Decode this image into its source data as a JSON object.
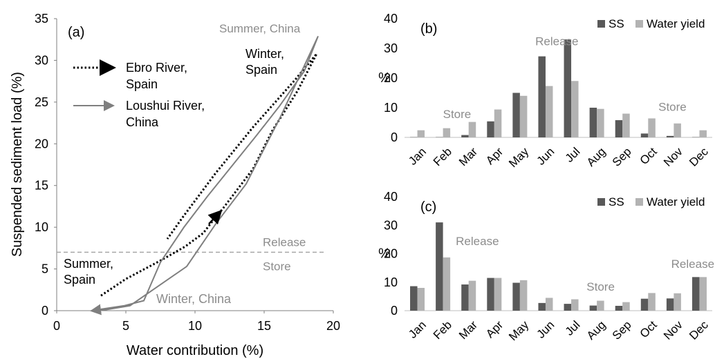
{
  "colors": {
    "ss": "#595959",
    "water": "#b3b3b3",
    "axis": "#7f7f7f",
    "text": "#000000",
    "annot_gray": "#8c8c8c",
    "ebro_line": "#000000",
    "loushui_line": "#7f7f7f",
    "threshold": "#a6a6a6"
  },
  "chart_data": [
    {
      "id": "a",
      "type": "line",
      "panel_label": "(a)",
      "xlabel": "Water contribution (%)",
      "ylabel": "Suspended sediment load (%)",
      "xlim": [
        0,
        20
      ],
      "ylim": [
        0,
        35
      ],
      "xticks": [
        "0",
        "5",
        "10",
        "15",
        "20"
      ],
      "yticks": [
        "0",
        "5",
        "10",
        "15",
        "20",
        "25",
        "30",
        "35"
      ],
      "threshold_y": 7,
      "threshold_labels": {
        "above": "Release",
        "below": "Store"
      },
      "legend": [
        {
          "key": "ebro",
          "line1": "Ebro River,",
          "line2": "Spain",
          "style": "dotted"
        },
        {
          "key": "loushui",
          "line1": "Loushui River,",
          "line2": "China",
          "style": "solid"
        }
      ],
      "series": [
        {
          "key": "ebro",
          "points": [
            [
              3.2,
              1.8
            ],
            [
              5.0,
              3.8
            ],
            [
              7.5,
              6.0
            ],
            [
              9.3,
              7.7
            ],
            [
              10.6,
              9.3
            ],
            [
              11.3,
              10.8
            ],
            [
              12.0,
              12.2
            ],
            [
              14.2,
              17.0
            ],
            [
              15.6,
              21.6
            ],
            [
              17.4,
              26.3
            ],
            [
              18.8,
              30.8
            ],
            [
              17.2,
              27.6
            ],
            [
              14.2,
              22.0
            ],
            [
              11.5,
              16.5
            ],
            [
              9.2,
              11.4
            ],
            [
              8.0,
              8.6
            ]
          ]
        },
        {
          "key": "loushui",
          "points": [
            [
              2.5,
              0.0
            ],
            [
              4.9,
              0.6
            ],
            [
              6.3,
              1.2
            ],
            [
              7.5,
              5.8
            ],
            [
              9.2,
              10.0
            ],
            [
              10.9,
              13.7
            ],
            [
              12.6,
              17.2
            ],
            [
              14.4,
              20.9
            ],
            [
              16.1,
              24.5
            ],
            [
              17.9,
              28.7
            ],
            [
              18.9,
              32.9
            ],
            [
              16.2,
              23.3
            ],
            [
              13.7,
              15.2
            ],
            [
              11.5,
              10.4
            ],
            [
              9.4,
              5.3
            ],
            [
              5.3,
              0.6
            ],
            [
              3.5,
              0.1
            ],
            [
              2.5,
              0.0
            ]
          ]
        }
      ],
      "annotations": [
        {
          "id": "summer-china",
          "line1": "Summer, China",
          "line2": "",
          "dx": 18.9,
          "dy": 32.9
        },
        {
          "id": "winter-spain",
          "line1": "Winter,",
          "line2": "Spain",
          "dx": 15.4,
          "dy": 27.8
        },
        {
          "id": "summer-spain",
          "line1": "Summer,",
          "line2": "Spain",
          "dx": 0.5,
          "dy": 4.9
        },
        {
          "id": "winter-china",
          "line1": "Winter, China",
          "line2": "",
          "dx": 7.2,
          "dy": 1.0
        }
      ]
    },
    {
      "id": "b",
      "type": "bar",
      "panel_label": "(b)",
      "ylabel": "%",
      "ylim": [
        0,
        40
      ],
      "yticks": [
        "0",
        "10",
        "20",
        "30",
        "40"
      ],
      "categories": [
        "Jan",
        "Feb",
        "Mar",
        "Apr",
        "May",
        "Jun",
        "Jul",
        "Aug",
        "Sep",
        "Oct",
        "Nov",
        "Dec"
      ],
      "legend": [
        "SS",
        "Water yield"
      ],
      "series": [
        {
          "name": "SS",
          "values": [
            0.1,
            0.1,
            0.8,
            5.4,
            15.0,
            27.3,
            33.0,
            10.0,
            5.8,
            1.3,
            0.5,
            0.1
          ]
        },
        {
          "name": "Water yield",
          "values": [
            2.4,
            3.1,
            5.2,
            9.4,
            14.0,
            17.3,
            19.0,
            9.6,
            8.0,
            6.4,
            4.7,
            2.4
          ]
        }
      ],
      "annotations": [
        {
          "text": "Store",
          "cat": 1.5,
          "y": 6.5
        },
        {
          "text": "Release",
          "cat": 5.1,
          "y": 31
        },
        {
          "text": "Store",
          "cat": 9.9,
          "y": 9
        }
      ]
    },
    {
      "id": "c",
      "type": "bar",
      "panel_label": "(c)",
      "ylabel": "%",
      "ylim": [
        0,
        40
      ],
      "yticks": [
        "0",
        "10",
        "20",
        "30",
        "40"
      ],
      "categories": [
        "Jan",
        "Feb",
        "Mar",
        "Apr",
        "May",
        "Jun",
        "Jul",
        "Aug",
        "Sep",
        "Oct",
        "Nov",
        "Dec"
      ],
      "legend": [
        "SS",
        "Water yield"
      ],
      "series": [
        {
          "name": "SS",
          "values": [
            8.6,
            31.0,
            9.2,
            11.5,
            9.8,
            2.7,
            2.4,
            1.8,
            1.7,
            4.2,
            4.3,
            11.8
          ]
        },
        {
          "name": "Water yield",
          "values": [
            8.0,
            18.7,
            10.5,
            11.5,
            10.7,
            4.5,
            4.0,
            3.5,
            3.0,
            6.2,
            6.1,
            11.8
          ]
        }
      ],
      "annotations": [
        {
          "text": "Release",
          "cat": 2.0,
          "y": 23
        },
        {
          "text": "Store",
          "cat": 7.1,
          "y": 7
        },
        {
          "text": "Release",
          "cat": 10.4,
          "y": 15
        }
      ]
    }
  ]
}
